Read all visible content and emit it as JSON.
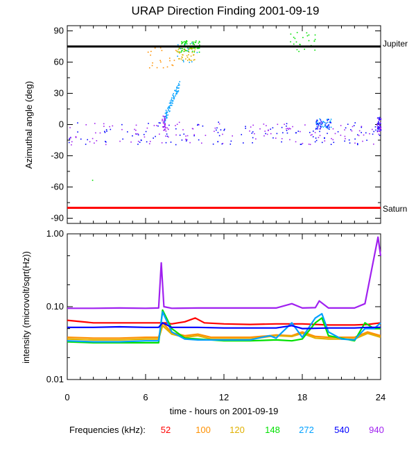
{
  "chart_data": [
    {
      "type": "scatter",
      "title": "URAP Direction Finding  2001-09-19",
      "xlabel": "",
      "ylabel": "Azimuthal angle (deg)",
      "xlim": [
        0,
        24
      ],
      "ylim": [
        -95,
        95
      ],
      "yticks": [
        -90,
        -60,
        -30,
        0,
        30,
        60,
        90
      ],
      "yticklabels": [
        "-90",
        "-60",
        "-30",
        "0",
        "30",
        "60",
        "90"
      ],
      "reference_lines": [
        {
          "name": "Jupiter",
          "value": 75,
          "color": "#000000"
        },
        {
          "name": "Saturn",
          "value": -80,
          "color": "#ff0000"
        }
      ],
      "series": [
        {
          "freq": "940",
          "color": "#a020f0",
          "description": "scattered points around -5 deg across the whole day"
        },
        {
          "freq": "540",
          "color": "#0000ff",
          "description": "scattered points around -5 deg, cluster near 19-20 h at 0 deg"
        },
        {
          "freq": "272",
          "color": "#00a0ff",
          "description": "rising track from 7.3 h (10 deg) to 8.5 h (40 deg)"
        },
        {
          "freq": "148",
          "color": "#00e000",
          "description": "cluster near 75 deg from 8.5 to 10 h and near 17-19 h"
        },
        {
          "freq": "120",
          "color": "#e0b000",
          "description": "points near 60-75 deg around 6-10 h"
        },
        {
          "freq": "100",
          "color": "#ff9000",
          "description": "points near 60-70 deg around 6-9 h"
        }
      ]
    },
    {
      "type": "line",
      "title": "",
      "xlabel": "time - hours on 2001-09-19",
      "ylabel": "intensity (microvolt/sqrt(Hz))",
      "xlim": [
        0,
        24
      ],
      "ylim": [
        0.01,
        1.0
      ],
      "yscale": "log",
      "xticks": [
        0,
        6,
        12,
        18,
        24
      ],
      "xticklabels": [
        "0",
        "6",
        "12",
        "18",
        "24"
      ],
      "yticks": [
        0.01,
        0.1,
        1.0
      ],
      "yticklabels": [
        "0.01",
        "0.10",
        "1.00"
      ],
      "series": [
        {
          "name": "52",
          "color": "#ff0000",
          "x": [
            0,
            2,
            4,
            6,
            7,
            7.5,
            8,
            9,
            9.8,
            10.5,
            12,
            14,
            16,
            18,
            20,
            22,
            23,
            24
          ],
          "values": [
            0.065,
            0.06,
            0.06,
            0.06,
            0.06,
            0.06,
            0.058,
            0.062,
            0.07,
            0.06,
            0.058,
            0.057,
            0.058,
            0.058,
            0.056,
            0.056,
            0.057,
            0.06
          ]
        },
        {
          "name": "100",
          "color": "#ff9000",
          "x": [
            0,
            2,
            4,
            6,
            7,
            7.3,
            8,
            9,
            10,
            11,
            12,
            14,
            15.5,
            16,
            17.2,
            18,
            19,
            20,
            22,
            23,
            24
          ],
          "values": [
            0.038,
            0.037,
            0.037,
            0.038,
            0.038,
            0.06,
            0.044,
            0.04,
            0.042,
            0.038,
            0.038,
            0.038,
            0.04,
            0.041,
            0.04,
            0.045,
            0.039,
            0.038,
            0.038,
            0.045,
            0.04
          ]
        },
        {
          "name": "120",
          "color": "#e0b000",
          "x": [
            0,
            2,
            4,
            6,
            7,
            7.3,
            8,
            9,
            10,
            11,
            12,
            14,
            16,
            17.2,
            18,
            19,
            20,
            22,
            23,
            24
          ],
          "values": [
            0.036,
            0.035,
            0.035,
            0.036,
            0.036,
            0.055,
            0.042,
            0.038,
            0.04,
            0.036,
            0.036,
            0.036,
            0.04,
            0.039,
            0.043,
            0.037,
            0.036,
            0.036,
            0.043,
            0.038
          ]
        },
        {
          "name": "148",
          "color": "#00e000",
          "x": [
            0,
            2,
            4,
            6,
            7,
            7.3,
            8,
            9,
            10,
            12,
            14,
            16,
            17.2,
            18,
            19,
            19.5,
            20,
            22,
            22.8,
            23.5,
            24
          ],
          "values": [
            0.033,
            0.032,
            0.032,
            0.032,
            0.032,
            0.09,
            0.05,
            0.037,
            0.036,
            0.034,
            0.034,
            0.035,
            0.034,
            0.036,
            0.06,
            0.07,
            0.04,
            0.034,
            0.06,
            0.05,
            0.05
          ]
        },
        {
          "name": "272",
          "color": "#00a0ff",
          "x": [
            0,
            2,
            4,
            6,
            7,
            7.3,
            8,
            9,
            10,
            12,
            14,
            15.5,
            16,
            17.2,
            18,
            19,
            19.5,
            20,
            21,
            22,
            22.8,
            23.5,
            24
          ],
          "values": [
            0.034,
            0.033,
            0.033,
            0.034,
            0.034,
            0.085,
            0.045,
            0.036,
            0.035,
            0.035,
            0.035,
            0.04,
            0.037,
            0.06,
            0.038,
            0.07,
            0.08,
            0.045,
            0.036,
            0.035,
            0.05,
            0.05,
            0.06
          ]
        },
        {
          "name": "540",
          "color": "#0000ff",
          "x": [
            0,
            2,
            4,
            6,
            7,
            7.3,
            8,
            10,
            12,
            14,
            16,
            17.2,
            18,
            20,
            22,
            23,
            24
          ],
          "values": [
            0.052,
            0.052,
            0.053,
            0.052,
            0.052,
            0.06,
            0.052,
            0.052,
            0.051,
            0.051,
            0.051,
            0.055,
            0.05,
            0.051,
            0.051,
            0.052,
            0.052
          ]
        },
        {
          "name": "940",
          "color": "#a020f0",
          "x": [
            0,
            2,
            4,
            6,
            7,
            7.2,
            7.4,
            8,
            10,
            12,
            14,
            16,
            17.2,
            18,
            19,
            19.3,
            20,
            22,
            22.8,
            23.8,
            24
          ],
          "values": [
            0.095,
            0.095,
            0.096,
            0.095,
            0.096,
            0.4,
            0.1,
            0.095,
            0.096,
            0.096,
            0.096,
            0.096,
            0.11,
            0.096,
            0.097,
            0.12,
            0.096,
            0.096,
            0.11,
            0.9,
            0.5
          ]
        }
      ]
    }
  ],
  "legend": {
    "label": "Frequencies (kHz):",
    "items": [
      {
        "text": "52",
        "color": "#ff0000"
      },
      {
        "text": "100",
        "color": "#ff9000"
      },
      {
        "text": "120",
        "color": "#e0b000"
      },
      {
        "text": "148",
        "color": "#00e000"
      },
      {
        "text": "272",
        "color": "#00a0ff"
      },
      {
        "text": "540",
        "color": "#0000ff"
      },
      {
        "text": "940",
        "color": "#a020f0"
      }
    ]
  }
}
